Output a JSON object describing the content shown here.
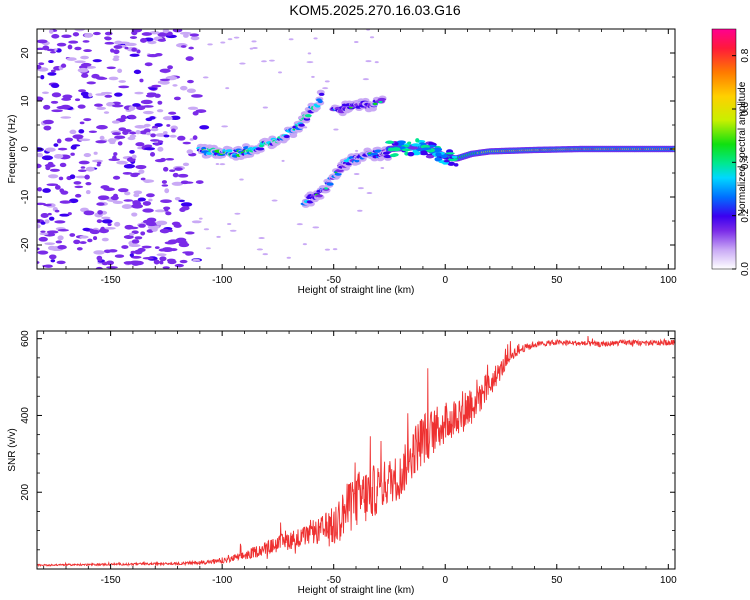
{
  "title": "KOM5.2025.270.16.03.G16",
  "colors": {
    "snr_line": "#ee3030",
    "colormap": [
      "#ffffff",
      "#c9a9f5",
      "#7a2be8",
      "#3a00f0",
      "#0070ff",
      "#00d8ff",
      "#00e890",
      "#10e010",
      "#c8f000",
      "#ffd000",
      "#ff7a00",
      "#ff1a3a",
      "#ff0090"
    ]
  },
  "chart_data": [
    {
      "type": "heatmap",
      "name": "spectrogram",
      "xlabel": "Height of straight line (km)",
      "ylabel": "Frequency (Hz)",
      "xlim": [
        -183,
        103
      ],
      "ylim": [
        -25,
        25
      ],
      "xticks": [
        -150,
        -100,
        -50,
        0,
        50,
        100
      ],
      "yticks": [
        -20,
        -10,
        0,
        10,
        20
      ],
      "colorbar": {
        "label": "Normalized spectral amplitude",
        "range": [
          0,
          0.9
        ],
        "ticks": [
          0.0,
          0.2,
          0.4,
          0.6,
          0.8
        ]
      },
      "features": [
        {
          "name": "noise",
          "x_range": [
            -183,
            -105
          ],
          "y_range": [
            -25,
            25
          ],
          "amplitude": 0.12
        },
        {
          "name": "rising-branch",
          "points": [
            [
              -110,
              -0.5
            ],
            [
              -95,
              -1
            ],
            [
              -85,
              0
            ],
            [
              -75,
              2
            ],
            [
              -65,
              5
            ],
            [
              -58,
              9
            ],
            [
              -55,
              11
            ]
          ],
          "amplitude": 0.35
        },
        {
          "name": "upper-cluster",
          "points": [
            [
              -50,
              8
            ],
            [
              -40,
              9
            ],
            [
              -30,
              9.5
            ],
            [
              -28,
              10
            ]
          ],
          "amplitude": 0.2
        },
        {
          "name": "lower-branch",
          "points": [
            [
              -63,
              -11
            ],
            [
              -55,
              -9
            ],
            [
              -50,
              -6
            ],
            [
              -45,
              -3
            ],
            [
              -35,
              -1
            ],
            [
              -25,
              -1
            ]
          ],
          "amplitude": 0.25
        },
        {
          "name": "trace",
          "points": [
            [
              -25,
              0
            ],
            [
              -10,
              0.5
            ],
            [
              0,
              -1.5
            ],
            [
              5,
              -2
            ],
            [
              12,
              -1
            ],
            [
              20,
              -0.5
            ],
            [
              40,
              -0.2
            ],
            [
              60,
              0
            ],
            [
              80,
              0
            ],
            [
              103,
              0
            ]
          ],
          "amplitude": 0.6
        }
      ]
    },
    {
      "type": "line",
      "name": "snr",
      "xlabel": "Height of straight line (km)",
      "ylabel": "SNR (v/v)",
      "xlim": [
        -183,
        103
      ],
      "ylim": [
        0,
        620
      ],
      "xticks": [
        -150,
        -100,
        -50,
        0,
        50,
        100
      ],
      "yticks": [
        200,
        400,
        600
      ],
      "series": [
        {
          "name": "SNR",
          "x": [
            -183,
            -150,
            -120,
            -100,
            -90,
            -80,
            -70,
            -60,
            -50,
            -45,
            -40,
            -35,
            -30,
            -25,
            -20,
            -15,
            -10,
            -5,
            0,
            5,
            10,
            15,
            20,
            25,
            30,
            35,
            40,
            50,
            60,
            70,
            80,
            90,
            103
          ],
          "values": [
            10,
            12,
            14,
            20,
            35,
            55,
            75,
            90,
            110,
            150,
            180,
            190,
            210,
            230,
            240,
            300,
            340,
            360,
            380,
            400,
            420,
            450,
            480,
            520,
            560,
            575,
            585,
            590,
            588,
            585,
            590,
            588,
            590
          ],
          "noise": [
            4,
            5,
            6,
            12,
            25,
            35,
            50,
            50,
            110,
            130,
            150,
            150,
            130,
            120,
            120,
            130,
            140,
            120,
            110,
            100,
            120,
            100,
            70,
            50,
            30,
            20,
            15,
            14,
            14,
            14,
            14,
            14,
            14
          ]
        }
      ]
    }
  ]
}
